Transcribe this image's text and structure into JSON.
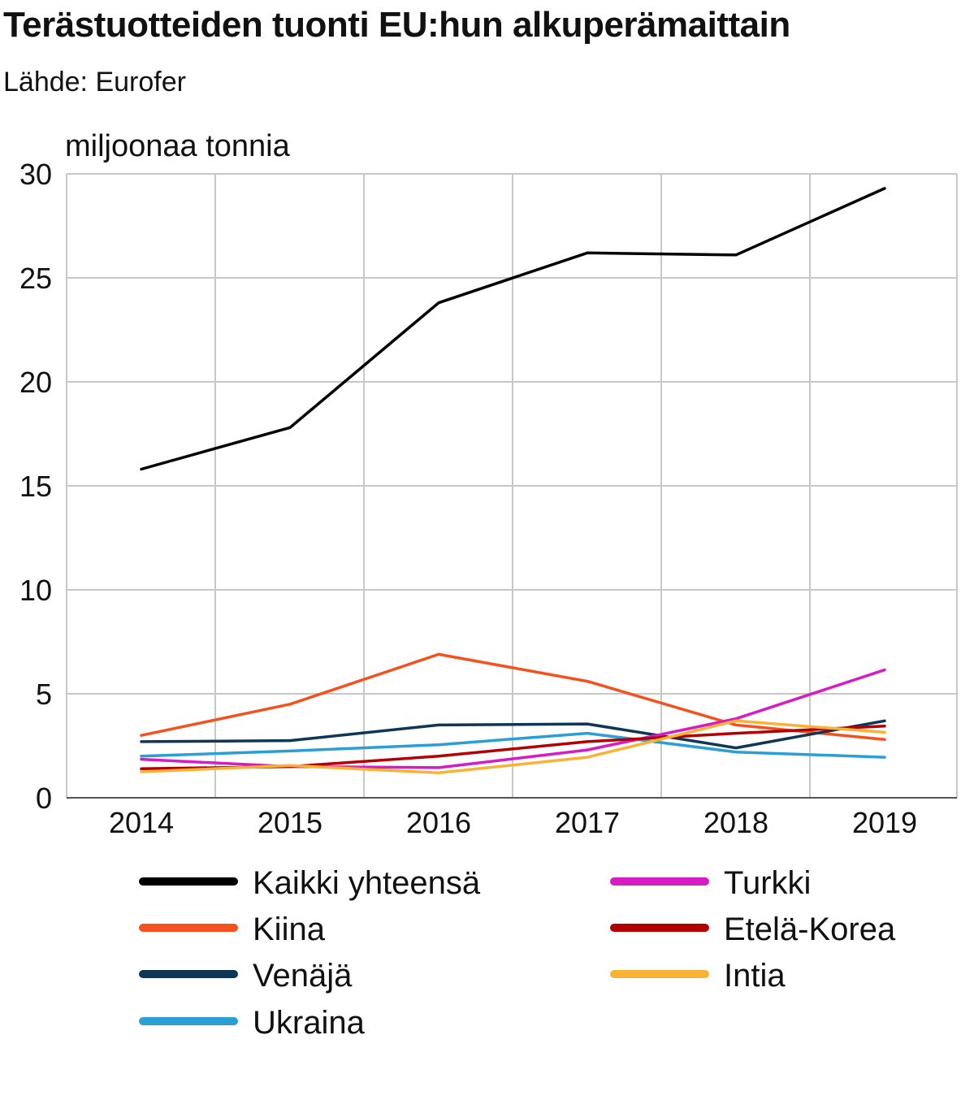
{
  "header": {
    "title": "Terästuotteiden tuonti EU:hun alkuperämaittain",
    "source": "Lähde: Eurofer"
  },
  "chart_data": {
    "type": "line",
    "title": "Terästuotteiden tuonti EU:hun alkuperämaittain",
    "subtitle": "Lähde: Eurofer",
    "ylabel": "miljoonaa tonnia",
    "xlabel": "",
    "x": [
      "2014",
      "2015",
      "2016",
      "2017",
      "2018",
      "2019"
    ],
    "ylim": [
      0,
      30
    ],
    "yticks": [
      0,
      5,
      10,
      15,
      20,
      25,
      30
    ],
    "grid": true,
    "legend_position": "bottom",
    "series": [
      {
        "name": "Kaikki yhteensä",
        "color": "#000000",
        "values": [
          15.8,
          17.8,
          23.8,
          26.2,
          26.1,
          29.3
        ]
      },
      {
        "name": "Kiina",
        "color": "#f4511e",
        "values": [
          3.0,
          4.5,
          6.9,
          5.6,
          3.5,
          2.8
        ]
      },
      {
        "name": "Venäjä",
        "color": "#0f3557",
        "values": [
          2.7,
          2.75,
          3.5,
          3.55,
          2.4,
          3.7
        ]
      },
      {
        "name": "Ukraina",
        "color": "#2a9fd6",
        "values": [
          2.0,
          2.25,
          2.55,
          3.1,
          2.2,
          1.95
        ]
      },
      {
        "name": "Turkki",
        "color": "#d61cc4",
        "values": [
          1.85,
          1.5,
          1.45,
          2.3,
          3.8,
          6.15
        ]
      },
      {
        "name": "Etelä-Korea",
        "color": "#b30000",
        "values": [
          1.4,
          1.5,
          2.0,
          2.7,
          3.1,
          3.45
        ]
      },
      {
        "name": "Intia",
        "color": "#f9b233",
        "values": [
          1.25,
          1.55,
          1.2,
          1.95,
          3.7,
          3.15
        ]
      }
    ]
  }
}
